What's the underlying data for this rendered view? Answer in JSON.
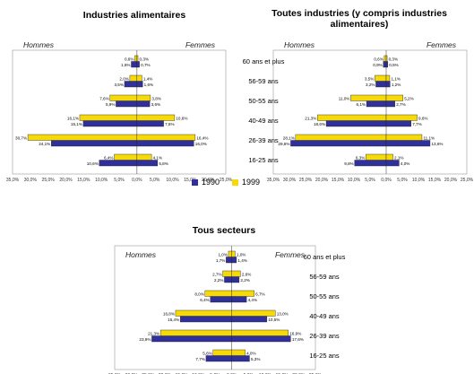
{
  "chart_data": [
    {
      "type": "bar",
      "title": "Industries alimentaires",
      "left_label": "Hommes",
      "right_label": "Femmes",
      "age_labels": [
        "60 ans et plus",
        "56-59 ans",
        "50-55 ans",
        "40-49 ans",
        "26-39 ans",
        "16-25 ans"
      ],
      "xlim": [
        -35,
        25
      ],
      "x_ticks": [
        "35,0%",
        "30,0%",
        "25,0%",
        "20,0%",
        "15,0%",
        "10,0%",
        "5,0%",
        "0,0%",
        "5,0%",
        "10,0%",
        "15,0%",
        "20,0%",
        "25,0%"
      ],
      "series": [
        {
          "name": "1990",
          "men": [
            1.6,
            3.5,
            5.9,
            15.1,
            24.1,
            10.6
          ],
          "women": [
            0.7,
            1.6,
            3.6,
            7.5,
            16.0,
            5.8
          ],
          "men_labels": [
            "1,6%",
            "3,5%",
            "5,9%",
            "15,1%",
            "24,1%",
            "10,6%"
          ],
          "women_labels": [
            "0,7%",
            "1,6%",
            "3,6%",
            "7,5%",
            "16,0%",
            "5,8%"
          ]
        },
        {
          "name": "1999",
          "men": [
            0.6,
            2.0,
            7.6,
            16.1,
            30.7,
            6.4
          ],
          "women": [
            0.3,
            1.4,
            3.8,
            10.6,
            16.4,
            4.1
          ],
          "men_labels": [
            "0,6%",
            "2,0%",
            "7,6%",
            "16,1%",
            "30,7%",
            "6,4%"
          ],
          "women_labels": [
            "0,3%",
            "1,4%",
            "3,8%",
            "10,6%",
            "16,4%",
            "4,1%"
          ]
        }
      ]
    },
    {
      "type": "bar",
      "title": "Toutes industries (y compris industries alimentaires)",
      "left_label": "Hommes",
      "right_label": "Femmes",
      "age_labels": [],
      "xlim": [
        -35,
        25
      ],
      "x_ticks": [
        "35,0%",
        "30,0%",
        "25,0%",
        "20,0%",
        "15,0%",
        "10,0%",
        "5,0%",
        "0,0%",
        "5,0%",
        "10,0%",
        "15,0%",
        "20,0%",
        "25,0%"
      ],
      "series": [
        {
          "name": "1990",
          "men": [
            0.9,
            3.2,
            6.1,
            18.6,
            29.6,
            9.8
          ],
          "women": [
            0.5,
            1.2,
            2.7,
            7.7,
            13.6,
            4.0
          ],
          "men_labels": [
            "0,9%",
            "3,2%",
            "6,1%",
            "18,6%",
            "29,6%",
            "9,8%"
          ],
          "women_labels": [
            "0,5%",
            "1,2%",
            "2,7%",
            "7,7%",
            "13,6%",
            "4,0%"
          ]
        },
        {
          "name": "1999",
          "men": [
            0.6,
            3.5,
            11.0,
            21.3,
            28.1,
            6.3
          ],
          "women": [
            0.3,
            1.1,
            5.2,
            9.6,
            11.1,
            2.1
          ],
          "men_labels": [
            "0,6%",
            "3,5%",
            "11,0%",
            "21,3%",
            "28,1%",
            "6,3%"
          ],
          "women_labels": [
            "0,3%",
            "1,1%",
            "5,2%",
            "9,6%",
            "11,1%",
            "2,1%"
          ]
        }
      ]
    },
    {
      "type": "bar",
      "title": "Tous secteurs",
      "left_label": "Hommes",
      "right_label": "Femmes",
      "age_labels": [
        "60 ans et plus",
        "56-59 ans",
        "50-55 ans",
        "40-49 ans",
        "26-39 ans",
        "16-25 ans"
      ],
      "xlim": [
        -35,
        25
      ],
      "x_ticks": [
        "35,0%",
        "30,0%",
        "25,0%",
        "20,0%",
        "15,0%",
        "10,0%",
        "5,0%",
        "0,0%",
        "5,0%",
        "10,0%",
        "15,0%",
        "20,0%",
        "25,0%"
      ],
      "series": [
        {
          "name": "1990",
          "men": [
            1.7,
            2.2,
            6.4,
            15.4,
            23.9,
            7.7
          ],
          "women": [
            1.4,
            2.2,
            4.4,
            10.5,
            17.6,
            5.3
          ],
          "men_labels": [
            "1,7%",
            "2,2%",
            "6,4%",
            "15,4%",
            "23,9%",
            "7,7%"
          ],
          "women_labels": [
            "1,4%",
            "2,2%",
            "4,4%",
            "10,5%",
            "17,6%",
            "5,3%"
          ]
        },
        {
          "name": "1999",
          "men": [
            1.0,
            2.7,
            8.0,
            16.8,
            21.3,
            5.6
          ],
          "women": [
            1.0,
            2.6,
            6.7,
            13.0,
            16.9,
            4.0
          ],
          "men_labels": [
            "1,0%",
            "2,7%",
            "8,0%",
            "16,8%",
            "21,3%",
            "5,6%"
          ],
          "women_labels": [
            "1,0%",
            "2,6%",
            "6,7%",
            "13,0%",
            "16,9%",
            "4,0%"
          ]
        }
      ]
    }
  ],
  "legend": [
    {
      "label": "1990",
      "color": "#2f2f9e"
    },
    {
      "label": "1999",
      "color": "#f5d90b"
    }
  ]
}
